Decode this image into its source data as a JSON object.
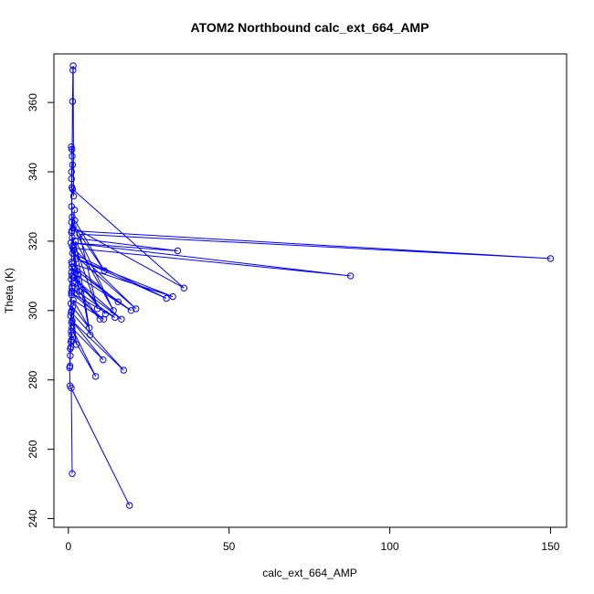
{
  "chart_data": {
    "type": "scatter",
    "title": "ATOM2 Northbound calc_ext_664_AMP",
    "xlabel": "calc_ext_664_AMP",
    "ylabel": "Theta (K)",
    "xlim": [
      -4.5,
      155
    ],
    "ylim": [
      237.5,
      374
    ],
    "xticks": [
      0,
      50,
      100,
      150
    ],
    "yticks": [
      240,
      260,
      280,
      300,
      320,
      340,
      360
    ],
    "grid": false,
    "legend": "none",
    "marker": "open-circle",
    "connected": true,
    "color": "#0000ff",
    "series": [
      {
        "points": [
          [
            1.2,
            253
          ],
          [
            0.9,
            277.6
          ],
          [
            19,
            243.8
          ],
          [
            0.5,
            278.3
          ],
          [
            0.4,
            283.5
          ],
          [
            0.6,
            289.0
          ],
          [
            0.8,
            291.0
          ],
          [
            1.0,
            293.0
          ],
          [
            8.5,
            281.0
          ],
          [
            1.1,
            295.0
          ],
          [
            10.8,
            285.8
          ],
          [
            1.2,
            297.0
          ],
          [
            17.2,
            282.8
          ],
          [
            0.9,
            299.5
          ],
          [
            2.5,
            290.2
          ],
          [
            1.3,
            301.0
          ],
          [
            6.5,
            295.0
          ],
          [
            1.5,
            303.0
          ],
          [
            11.0,
            297.5
          ],
          [
            1.0,
            305.0
          ],
          [
            14.5,
            298.0
          ],
          [
            1.2,
            306.5
          ],
          [
            9.8,
            297.5
          ],
          [
            1.4,
            308.0
          ],
          [
            16.5,
            297.5
          ],
          [
            1.6,
            309.5
          ],
          [
            11.5,
            299.0
          ],
          [
            1.0,
            311.0
          ],
          [
            19.5,
            300.0
          ],
          [
            1.8,
            312.0
          ],
          [
            15.5,
            302.5
          ],
          [
            1.2,
            313.5
          ],
          [
            32.5,
            304.0
          ],
          [
            2.5,
            315.0
          ],
          [
            30.5,
            303.5
          ],
          [
            1.3,
            316.5
          ],
          [
            21.0,
            300.5
          ],
          [
            1.5,
            318.0
          ],
          [
            87.8,
            310.0
          ],
          [
            0.8,
            319.5
          ],
          [
            34.0,
            317.2
          ],
          [
            1.2,
            321.0
          ],
          [
            9.0,
            300.5
          ],
          [
            3.5,
            322.0
          ],
          [
            150.0,
            315.0
          ],
          [
            1.1,
            323.0
          ],
          [
            1.9,
            329.0
          ],
          [
            1.0,
            322.5
          ],
          [
            1.3,
            360.3
          ],
          [
            1.4,
            369.3
          ],
          [
            1.5,
            370.6
          ],
          [
            1.6,
            333.0
          ],
          [
            1.3,
            335.0
          ],
          [
            36.0,
            306.5
          ],
          [
            1.5,
            324.0
          ],
          [
            2.0,
            326.0
          ],
          [
            11.2,
            311.5
          ],
          [
            1.0,
            325.5
          ],
          [
            14.0,
            300.0
          ],
          [
            2.2,
            320.0
          ],
          [
            6.8,
            293.0
          ],
          [
            1.6,
            317.5
          ],
          [
            3.0,
            310.5
          ],
          [
            1.1,
            312.5
          ],
          [
            3.5,
            305.5
          ],
          [
            1.2,
            318.5
          ],
          [
            1.0,
            340.0
          ],
          [
            1.2,
            344.5
          ],
          [
            1.1,
            346.5
          ],
          [
            0.9,
            347.2
          ],
          [
            1.3,
            342.0
          ],
          [
            1.0,
            338.0
          ],
          [
            1.1,
            335.5
          ],
          [
            1.0,
            330.0
          ],
          [
            1.2,
            327.0
          ],
          [
            1.0,
            314.0
          ],
          [
            0.9,
            309.0
          ],
          [
            1.2,
            307.0
          ],
          [
            1.0,
            304.5
          ],
          [
            0.8,
            302.0
          ],
          [
            1.1,
            300.0
          ],
          [
            0.7,
            298.5
          ],
          [
            1.0,
            296.5
          ],
          [
            0.9,
            294.0
          ],
          [
            1.0,
            291.5
          ],
          [
            0.8,
            289.5
          ],
          [
            0.6,
            287.0
          ],
          [
            0.5,
            284.0
          ],
          [
            1.0,
            305.5
          ],
          [
            1.1,
            310.0
          ]
        ]
      }
    ]
  }
}
